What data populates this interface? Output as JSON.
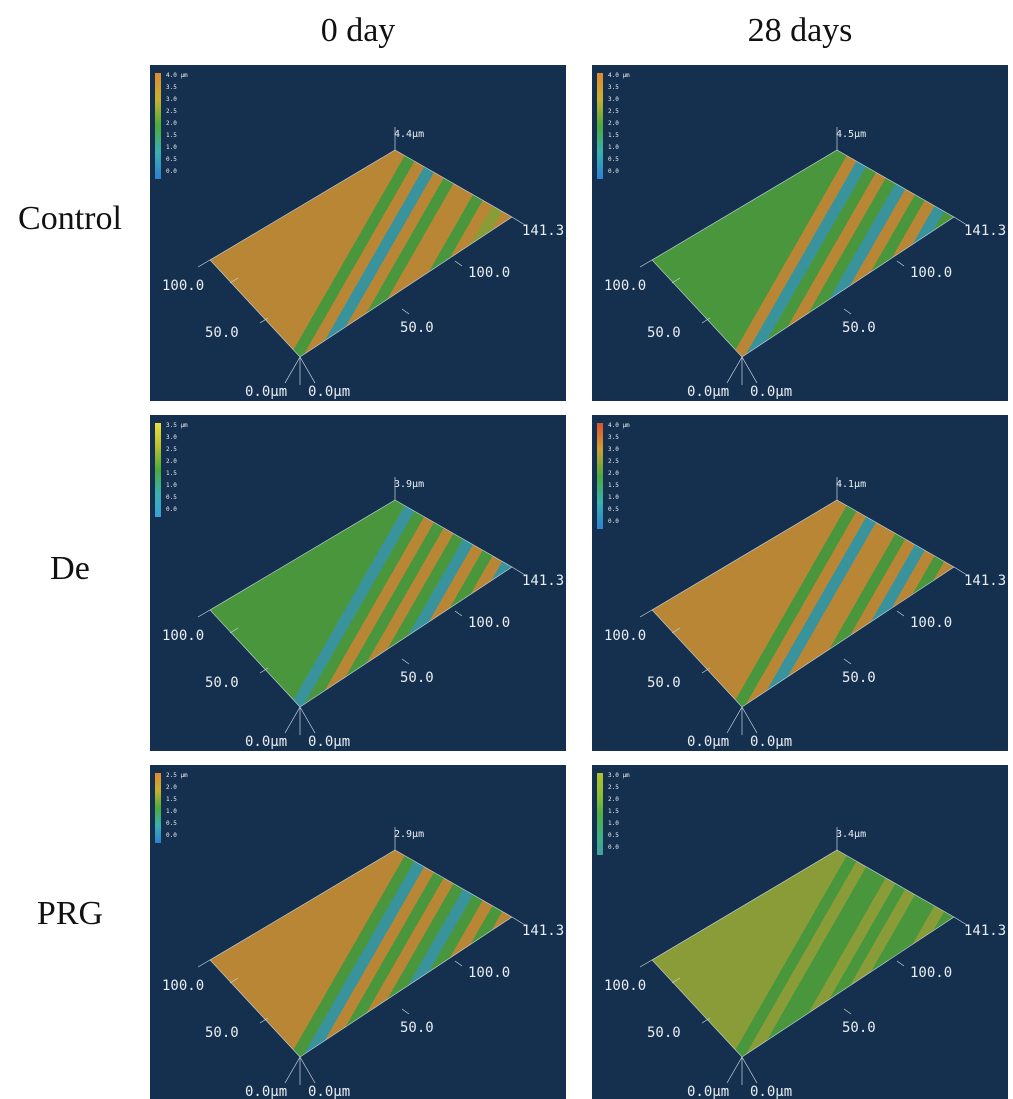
{
  "columns": [
    "0 day",
    "28 days"
  ],
  "rows": [
    "Control",
    "De",
    "PRG"
  ],
  "panels": [
    {
      "colorbar": [
        "4.0 μm",
        "3.5",
        "3.0",
        "2.5",
        "2.0",
        "1.5",
        "1.0",
        "0.5",
        "0.0"
      ],
      "peak": "4.4μm",
      "axis_right": [
        "141.3",
        "100.0",
        "50.0",
        "0.0μm"
      ],
      "axis_left": [
        "100.0",
        "50.0",
        "0.0μm"
      ]
    },
    {
      "colorbar": [
        "4.0 μm",
        "3.5",
        "3.0",
        "2.5",
        "2.0",
        "1.5",
        "1.0",
        "0.5",
        "0.0"
      ],
      "peak": "4.5μm",
      "axis_right": [
        "141.3",
        "100.0",
        "50.0",
        "0.0μm"
      ],
      "axis_left": [
        "100.0",
        "50.0",
        "0.0μm"
      ]
    },
    {
      "colorbar": [
        "3.5 μm",
        "3.0",
        "2.5",
        "2.0",
        "1.5",
        "1.0",
        "0.5",
        "0.0"
      ],
      "peak": "3.9μm",
      "axis_right": [
        "141.3",
        "100.0",
        "50.0",
        "0.0μm"
      ],
      "axis_left": [
        "100.0",
        "50.0",
        "0.0μm"
      ]
    },
    {
      "colorbar": [
        "4.0 μm",
        "3.5",
        "3.0",
        "2.5",
        "2.0",
        "1.5",
        "1.0",
        "0.5",
        "0.0"
      ],
      "peak": "4.1μm",
      "axis_right": [
        "141.3",
        "100.0",
        "50.0",
        "0.0μm"
      ],
      "axis_left": [
        "100.0",
        "50.0",
        "0.0μm"
      ]
    },
    {
      "colorbar": [
        "2.5 μm",
        "2.0",
        "1.5",
        "1.0",
        "0.5",
        "0.0"
      ],
      "peak": "2.9μm",
      "axis_right": [
        "141.3",
        "100.0",
        "50.0",
        "0.0μm"
      ],
      "axis_left": [
        "100.0",
        "50.0",
        "0.0μm"
      ]
    },
    {
      "colorbar": [
        "3.0 μm",
        "2.5",
        "2.0",
        "1.5",
        "1.0",
        "0.5",
        "0.0"
      ],
      "peak": "3.4μm",
      "axis_right": [
        "141.3",
        "100.0",
        "50.0",
        "0.0μm"
      ],
      "axis_left": [
        "100.0",
        "50.0",
        "0.0μm"
      ]
    }
  ]
}
